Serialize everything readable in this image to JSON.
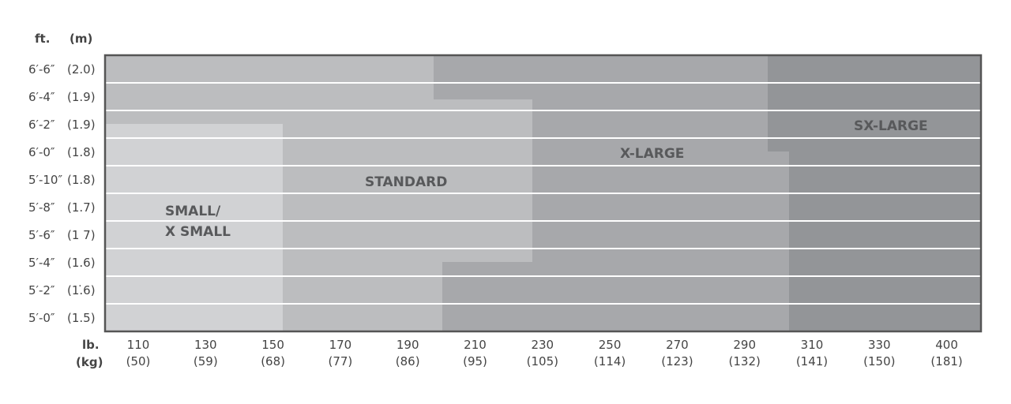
{
  "chart_data": {
    "type": "heatmap",
    "y_unit_labels": [
      "ft.",
      "(m)"
    ],
    "x_unit_labels": [
      "lb.",
      "(kg)"
    ],
    "y_ticks": [
      {
        "ft": "6′-6″",
        "m": "(2.0)"
      },
      {
        "ft": "6′-4″",
        "m": "(1.9)"
      },
      {
        "ft": "6′-2″",
        "m": "(1.9)"
      },
      {
        "ft": "6′-0″",
        "m": "(1.8)"
      },
      {
        "ft": "5′-10″",
        "m": "(1.8)"
      },
      {
        "ft": "5′-8″",
        "m": "(1.7)"
      },
      {
        "ft": "5′-6″",
        "m": "(1 7)"
      },
      {
        "ft": "5′-4″",
        "m": "(1.6)"
      },
      {
        "ft": "5′-2″",
        "m": "(1.̇6)"
      },
      {
        "ft": "5′-0″",
        "m": "(1.5)"
      }
    ],
    "x_ticks": [
      {
        "lb": "110",
        "kg": "(50)"
      },
      {
        "lb": "130",
        "kg": "(59)"
      },
      {
        "lb": "150",
        "kg": "(68)"
      },
      {
        "lb": "170",
        "kg": "(77)"
      },
      {
        "lb": "190",
        "kg": "(86)"
      },
      {
        "lb": "210",
        "kg": "(95)"
      },
      {
        "lb": "230",
        "kg": "(105)"
      },
      {
        "lb": "250",
        "kg": "(114)"
      },
      {
        "lb": "270",
        "kg": "(123)"
      },
      {
        "lb": "290",
        "kg": "(132)"
      },
      {
        "lb": "310",
        "kg": "(141)"
      },
      {
        "lb": "330",
        "kg": "(150)"
      },
      {
        "lb": "400",
        "kg": "(181)"
      }
    ],
    "regions": [
      {
        "name": "STANDARD",
        "color": "#bcbdbf"
      },
      {
        "name": "X-LARGE",
        "color": "#a7a8ab"
      },
      {
        "name": "SX-LARGE",
        "color": "#939598"
      },
      {
        "name_lines": [
          "SMALL/",
          "X SMALL"
        ],
        "color": "#d1d2d4"
      }
    ],
    "grid": true,
    "border_color": "#555555"
  }
}
